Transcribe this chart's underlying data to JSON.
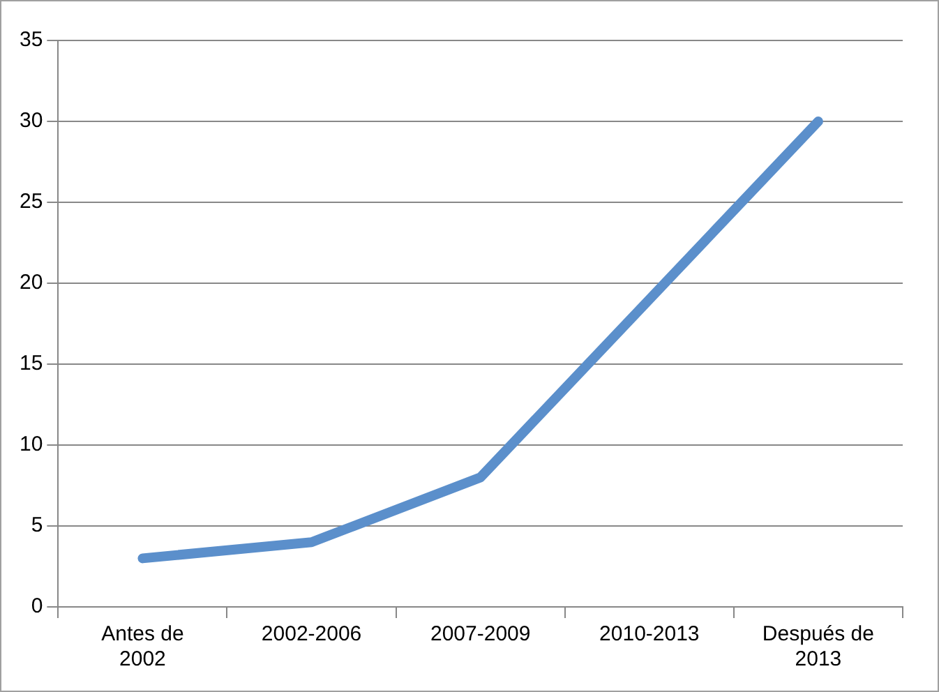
{
  "chart_data": {
    "type": "line",
    "categories": [
      "Antes de 2002",
      "2002-2006",
      "2007-2009",
      "2010-2013",
      "Después de 2013"
    ],
    "series": [
      {
        "color": "#5b8fcb",
        "values": [
          3,
          4,
          8,
          19,
          30
        ]
      }
    ],
    "ylim": [
      0,
      35
    ],
    "yticks": [
      0,
      5,
      10,
      15,
      20,
      25,
      30,
      35
    ],
    "grid": "y",
    "legend": false,
    "marker": "none",
    "line_style": "solid"
  }
}
